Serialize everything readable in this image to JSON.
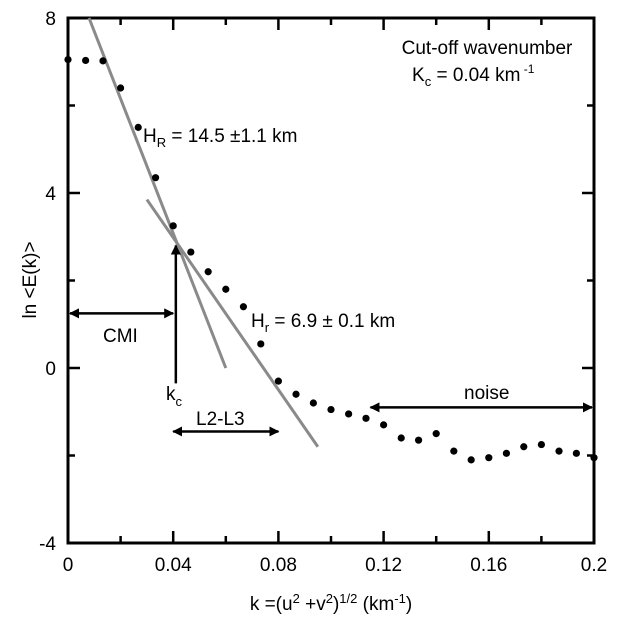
{
  "chart_data": {
    "type": "scatter",
    "title": "",
    "xlabel": "k =(u² +v²)¹ᐟ² (km⁻¹)",
    "ylabel": "ln <E(k)>",
    "xlim": [
      0,
      0.2
    ],
    "ylim": [
      -4,
      8
    ],
    "x_ticks": [
      0,
      0.04,
      0.08,
      0.12,
      0.16,
      0.2
    ],
    "x_tick_labels": [
      "0",
      "0.04",
      "0.08",
      "0.12",
      "0.16",
      "0.2"
    ],
    "y_ticks": [
      -4,
      0,
      4,
      8
    ],
    "y_tick_labels": [
      "-4",
      "0",
      "4",
      "8"
    ],
    "grid": false,
    "series": [
      {
        "x": [
          0.0,
          0.0067,
          0.0133,
          0.02,
          0.0267,
          0.0333,
          0.04,
          0.0467,
          0.0533,
          0.06,
          0.0667,
          0.0733,
          0.08,
          0.0867,
          0.0933,
          0.1,
          0.1067,
          0.1133,
          0.12,
          0.1267,
          0.1333,
          0.14,
          0.1467,
          0.1533,
          0.16,
          0.1667,
          0.1733,
          0.18,
          0.1867,
          0.1933,
          0.2
        ],
        "y": [
          7.05,
          7.03,
          7.02,
          6.4,
          5.5,
          4.35,
          3.25,
          2.65,
          2.2,
          1.8,
          1.4,
          0.55,
          -0.3,
          -0.6,
          -0.8,
          -0.95,
          -1.05,
          -1.15,
          -1.3,
          -1.6,
          -1.65,
          -1.5,
          -1.9,
          -2.1,
          -2.05,
          -1.95,
          -1.8,
          -1.75,
          -1.9,
          -1.95,
          -2.05
        ]
      }
    ],
    "fit_lines": [
      {
        "x": [
          0.008,
          0.06
        ],
        "y": [
          8.0,
          0.0
        ]
      },
      {
        "x": [
          0.03,
          0.095
        ],
        "y": [
          3.85,
          -1.8
        ]
      }
    ],
    "annotations": {
      "cutoff_title": "Cut-off wavenumber",
      "cutoff_value": "K",
      "cutoff_value_sub": "c",
      "cutoff_value_rest": " = 0.04 km",
      "cutoff_value_sup": " -1",
      "hr_large": "H",
      "hr_large_sub": "R",
      "hr_large_rest": " = 14.5 ±1.1 km",
      "hr_small": "H",
      "hr_small_sub": "r",
      "hr_small_rest": " = 6.9 ± 0.1 km",
      "cmi": "CMI",
      "kc": "k",
      "kc_sub": "c",
      "l2l3": "L2-L3",
      "noise": "noise"
    },
    "arrows": {
      "cmi": {
        "x": [
          0.0,
          0.04
        ],
        "y": 1.25
      },
      "kc": {
        "x": 0.041,
        "y": [
          -0.35,
          2.8
        ]
      },
      "l2l3": {
        "x": [
          0.04,
          0.08
        ],
        "y": -1.45
      },
      "noise": {
        "x": [
          0.115,
          0.2
        ],
        "y": -0.9
      }
    }
  }
}
